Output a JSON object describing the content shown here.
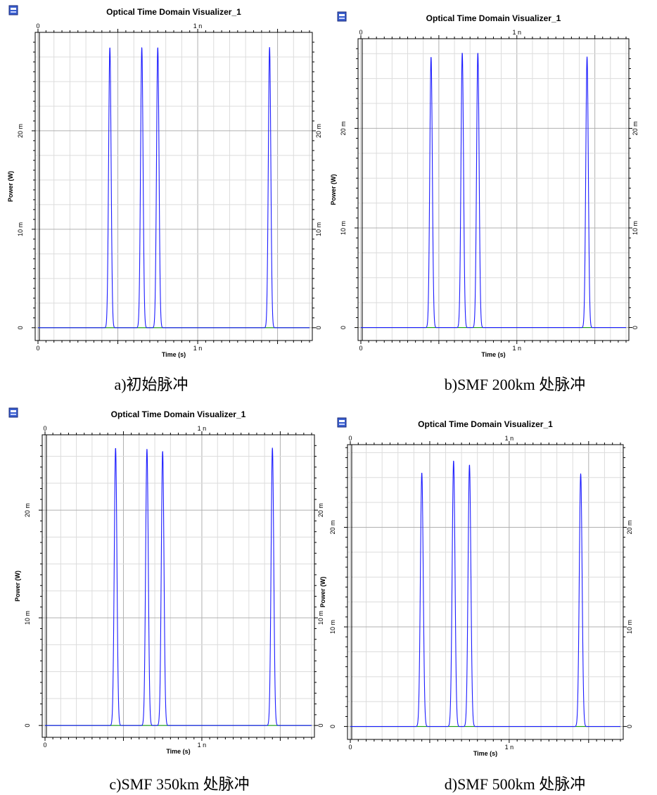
{
  "panels": [
    {
      "caption": "a)初始脉冲",
      "chart_data": {
        "type": "line",
        "title": "Optical Time Domain Visualizer_1",
        "xlabel": "Time (s)",
        "ylabel": "Power (W)",
        "xlim": [
          0,
          1.7e-09
        ],
        "ylim": [
          -0.0013,
          0.03
        ],
        "x_ticks": [
          {
            "value": 0,
            "label": "0"
          },
          {
            "value": 1e-09,
            "label": "1 n"
          }
        ],
        "y_ticks": [
          {
            "value": 0,
            "label": "0"
          },
          {
            "value": 0.01,
            "label": "10 m"
          },
          {
            "value": 0.02,
            "label": "20 m"
          }
        ],
        "grid": true,
        "pulse_width": 1.1e-11,
        "series": [
          {
            "color": "#1c1cff",
            "peaks": [
              {
                "t": 4.5e-10,
                "p": 0.0285
              },
              {
                "t": 6.5e-10,
                "p": 0.0285
              },
              {
                "t": 7.5e-10,
                "p": 0.0285
              },
              {
                "t": 1.45e-09,
                "p": 0.0285
              }
            ]
          },
          {
            "color": "#1aa01a",
            "peaks": []
          }
        ]
      }
    },
    {
      "caption": "b)SMF 200km 处脉冲",
      "chart_data": {
        "type": "line",
        "title": "Optical Time Domain Visualizer_1",
        "xlabel": "Time (s)",
        "ylabel": "Power (W)",
        "xlim": [
          0,
          1.7e-09
        ],
        "ylim": [
          -0.0013,
          0.029
        ],
        "x_ticks": [
          {
            "value": 0,
            "label": "0"
          },
          {
            "value": 1e-09,
            "label": "1 n"
          }
        ],
        "y_ticks": [
          {
            "value": 0,
            "label": "0"
          },
          {
            "value": 0.01,
            "label": "10 m"
          },
          {
            "value": 0.02,
            "label": "20 m"
          }
        ],
        "grid": true,
        "pulse_width": 1.15e-11,
        "series": [
          {
            "color": "#1c1cff",
            "peaks": [
              {
                "t": 4.5e-10,
                "p": 0.0272
              },
              {
                "t": 6.5e-10,
                "p": 0.0276
              },
              {
                "t": 7.5e-10,
                "p": 0.0276
              },
              {
                "t": 1.45e-09,
                "p": 0.0272
              }
            ]
          },
          {
            "color": "#1aa01a",
            "peaks": []
          }
        ]
      }
    },
    {
      "caption": "c)SMF 350km 处脉冲",
      "chart_data": {
        "type": "line",
        "title": "Optical Time Domain Visualizer_1",
        "xlabel": "Time (s)",
        "ylabel": "Power (W)",
        "xlim": [
          0,
          1.7e-09
        ],
        "ylim": [
          -0.0011,
          0.027
        ],
        "x_ticks": [
          {
            "value": 0,
            "label": "0"
          },
          {
            "value": 1e-09,
            "label": "1 n"
          }
        ],
        "y_ticks": [
          {
            "value": 0,
            "label": "0"
          },
          {
            "value": 0.01,
            "label": "10 m"
          },
          {
            "value": 0.02,
            "label": "20 m"
          }
        ],
        "grid": true,
        "pulse_width": 1.2e-11,
        "series": [
          {
            "color": "#1c1cff",
            "peaks": [
              {
                "t": 4.5e-10,
                "p": 0.0258
              },
              {
                "t": 6.5e-10,
                "p": 0.0257
              },
              {
                "t": 7.5e-10,
                "p": 0.0255
              },
              {
                "t": 1.45e-09,
                "p": 0.0258
              }
            ]
          },
          {
            "color": "#1aa01a",
            "peaks": []
          }
        ]
      }
    },
    {
      "caption": "d)SMF 500km 处脉冲",
      "chart_data": {
        "type": "line",
        "title": "Optical Time Domain Visualizer_1",
        "xlabel": "Time (s)",
        "ylabel": "Power (W)",
        "xlim": [
          0,
          1.7e-09
        ],
        "ylim": [
          -0.0013,
          0.0283
        ],
        "x_ticks": [
          {
            "value": 0,
            "label": "0"
          },
          {
            "value": 1e-09,
            "label": "1 n"
          }
        ],
        "y_ticks": [
          {
            "value": 0,
            "label": "0"
          },
          {
            "value": 0.01,
            "label": "10 m"
          },
          {
            "value": 0.02,
            "label": "20 m"
          }
        ],
        "grid": true,
        "pulse_width": 1.25e-11,
        "series": [
          {
            "color": "#1c1cff",
            "peaks": [
              {
                "t": 4.5e-10,
                "p": 0.0255
              },
              {
                "t": 6.5e-10,
                "p": 0.0267
              },
              {
                "t": 7.5e-10,
                "p": 0.0263
              },
              {
                "t": 1.45e-09,
                "p": 0.0254
              }
            ]
          },
          {
            "color": "#1aa01a",
            "peaks": []
          }
        ]
      }
    }
  ]
}
